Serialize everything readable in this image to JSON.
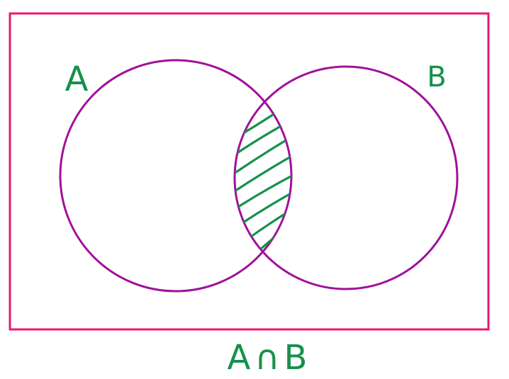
{
  "diagram": {
    "type": "venn",
    "sets": [
      {
        "label": "A"
      },
      {
        "label": "B"
      }
    ],
    "shaded_region": "intersection",
    "caption": "A∩B"
  },
  "colors": {
    "universe_border": "#e8196f",
    "circle_stroke": "#a0119a",
    "ink": "#15914b",
    "background": "#ffffff"
  }
}
